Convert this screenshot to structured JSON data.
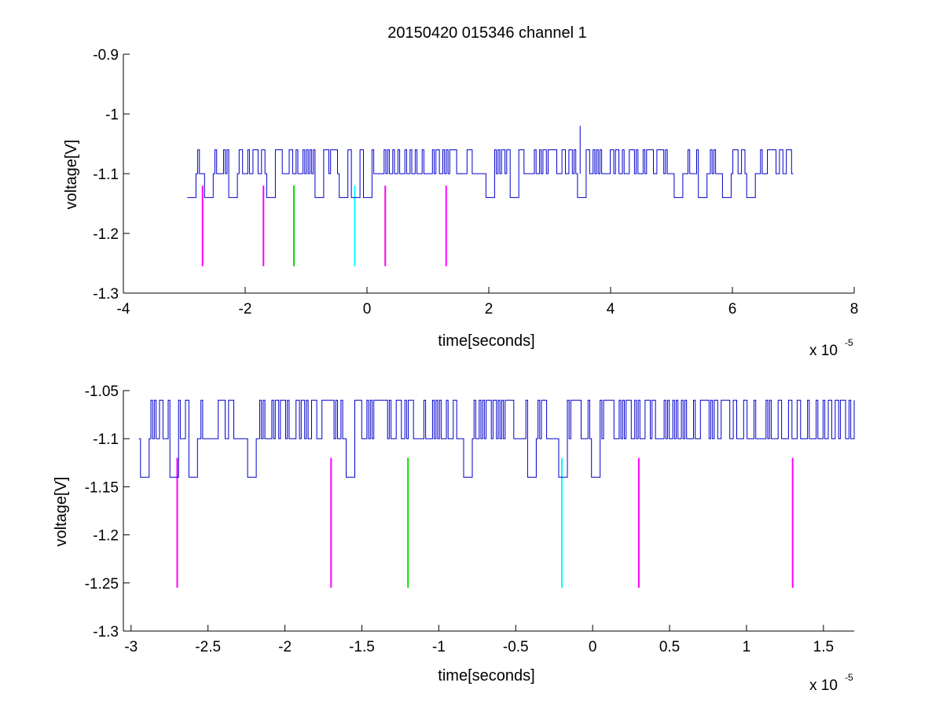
{
  "title": "20150420 015346 channel 1",
  "chart_data": [
    {
      "type": "line",
      "title": "20150420 015346 channel 1",
      "xlabel": "time[seconds]",
      "ylabel": "voltage[V]",
      "x_exponent_label": "x 10",
      "x_exponent": "-5",
      "xlim": [
        -4,
        8
      ],
      "ylim": [
        -1.3,
        -0.9
      ],
      "x_unit_scale": "1e-5",
      "grid": false,
      "xticks": [
        -4,
        -2,
        0,
        2,
        4,
        6,
        8
      ],
      "xtick_labels": [
        "-4",
        "-2",
        "0",
        "2",
        "4",
        "6",
        "8"
      ],
      "yticks": [
        -1.3,
        -1.2,
        -1.1,
        -1,
        -0.9
      ],
      "ytick_labels": [
        "-1.3",
        "-1.2",
        "-1.1",
        "-1",
        "-0.9"
      ],
      "signal": {
        "color": "#0000cc",
        "x_range": [
          -2.95,
          7.0
        ],
        "levels": [
          -1.06,
          -1.1,
          -1.14
        ],
        "baseline": -1.1,
        "dips": [
          -2.9,
          -2.6,
          -2.2,
          -1.6,
          -0.8,
          -0.4,
          -0.2,
          0.0,
          2.0,
          2.4,
          3.5,
          5.1,
          5.5,
          5.9,
          6.3
        ],
        "spike": {
          "x": 3.5,
          "y": -1.02
        }
      },
      "markers": [
        {
          "x": -2.7,
          "y_top": -1.12,
          "y_bottom": -1.255,
          "color": "#ff00ff"
        },
        {
          "x": -1.7,
          "y_top": -1.12,
          "y_bottom": -1.255,
          "color": "#ff00ff"
        },
        {
          "x": -1.2,
          "y_top": -1.12,
          "y_bottom": -1.255,
          "color": "#00dd00"
        },
        {
          "x": -0.2,
          "y_top": -1.12,
          "y_bottom": -1.255,
          "color": "#00ffff"
        },
        {
          "x": 0.3,
          "y_top": -1.12,
          "y_bottom": -1.255,
          "color": "#ff00ff"
        },
        {
          "x": 1.3,
          "y_top": -1.12,
          "y_bottom": -1.255,
          "color": "#ff00ff"
        }
      ]
    },
    {
      "type": "line",
      "title": "",
      "xlabel": "time[seconds]",
      "ylabel": "voltage[V]",
      "x_exponent_label": "x 10",
      "x_exponent": "-5",
      "xlim": [
        -3.05,
        1.7
      ],
      "ylim": [
        -1.3,
        -1.05
      ],
      "x_unit_scale": "1e-5",
      "grid": false,
      "xticks": [
        -3,
        -2.5,
        -2,
        -1.5,
        -1,
        -0.5,
        0,
        0.5,
        1,
        1.5
      ],
      "xtick_labels": [
        "-3",
        "-2.5",
        "-2",
        "-1.5",
        "-1",
        "-0.5",
        "0",
        "0.5",
        "1",
        "1.5"
      ],
      "yticks": [
        -1.3,
        -1.25,
        -1.2,
        -1.15,
        -1.1,
        -1.05
      ],
      "ytick_labels": [
        "-1.3",
        "-1.25",
        "-1.2",
        "-1.15",
        "-1.1",
        "-1.05"
      ],
      "signal": {
        "color": "#0000cc",
        "x_range": [
          -2.95,
          1.7
        ],
        "levels": [
          -1.06,
          -1.1,
          -1.14
        ],
        "baseline": -1.1,
        "dips": [
          -2.92,
          -2.72,
          -2.6,
          -2.22,
          -1.58,
          -0.82,
          -0.4,
          -0.2,
          0.02
        ]
      },
      "markers": [
        {
          "x": -2.7,
          "y_top": -1.12,
          "y_bottom": -1.255,
          "color": "#ff00ff"
        },
        {
          "x": -1.7,
          "y_top": -1.12,
          "y_bottom": -1.255,
          "color": "#ff00ff"
        },
        {
          "x": -1.2,
          "y_top": -1.12,
          "y_bottom": -1.255,
          "color": "#00dd00"
        },
        {
          "x": -0.2,
          "y_top": -1.12,
          "y_bottom": -1.255,
          "color": "#00ffff"
        },
        {
          "x": 0.3,
          "y_top": -1.12,
          "y_bottom": -1.255,
          "color": "#ff00ff"
        },
        {
          "x": 1.3,
          "y_top": -1.12,
          "y_bottom": -1.255,
          "color": "#ff00ff"
        }
      ]
    }
  ]
}
